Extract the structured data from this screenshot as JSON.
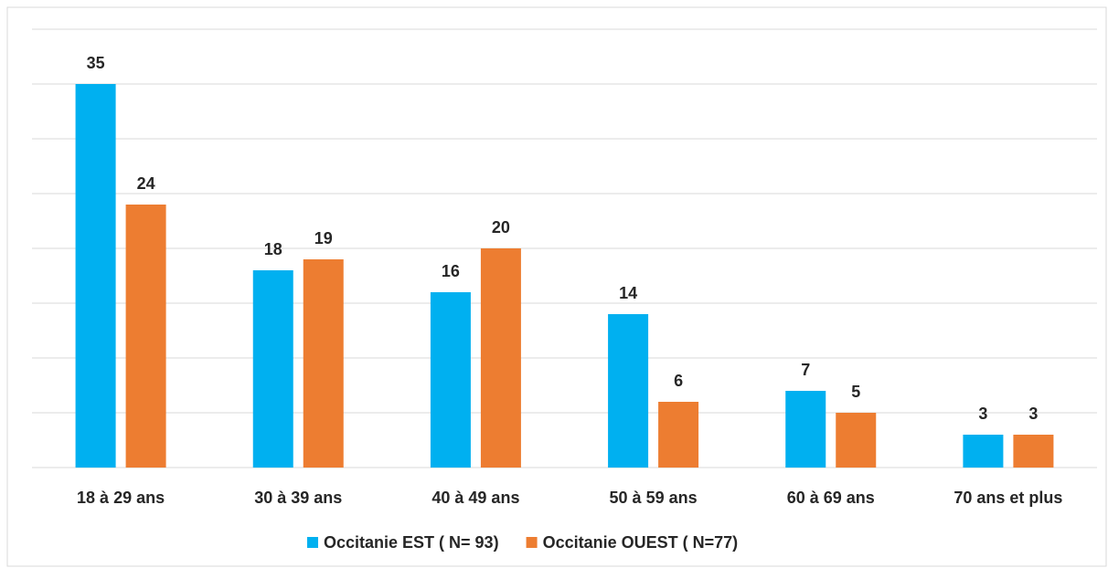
{
  "chart_data": {
    "type": "bar",
    "categories": [
      "18 à 29 ans",
      "30 à 39 ans",
      "40 à 49 ans",
      "50 à 59 ans",
      "60 à 69 ans",
      "70 ans et plus"
    ],
    "series": [
      {
        "name": "Occitanie EST ( N= 93)",
        "color": "#00b0f0",
        "values": [
          35,
          18,
          16,
          14,
          7,
          3
        ]
      },
      {
        "name": "Occitanie OUEST ( N=77)",
        "color": "#ed7d31",
        "values": [
          24,
          19,
          20,
          6,
          5,
          3
        ]
      }
    ],
    "ylim": [
      0,
      40
    ],
    "yticks": [
      0,
      5,
      10,
      15,
      20,
      25,
      30,
      35,
      40
    ],
    "grid": true
  }
}
